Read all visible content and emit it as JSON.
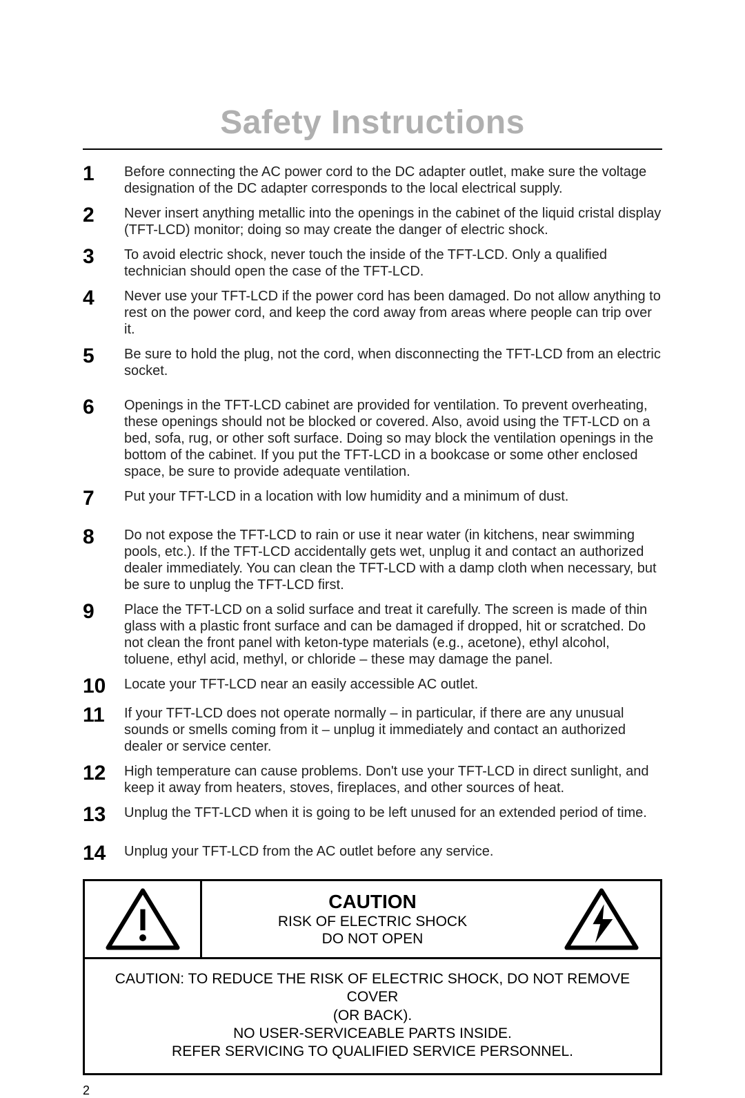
{
  "title": "Safety Instructions",
  "title_color": "#b0b0b0",
  "title_fontsize": 48,
  "rule_color": "#000000",
  "body_fontsize": 20,
  "number_fontsize": 30,
  "items": [
    {
      "n": "1",
      "t": "Before connecting the AC power cord to the DC adapter outlet, make sure the voltage designation of the DC adapter corresponds to the local electrical supply."
    },
    {
      "n": "2",
      "t": "Never insert anything metallic into the openings in the cabinet of the liquid cristal display (TFT-LCD) monitor; doing so may create the danger of electric shock."
    },
    {
      "n": "3",
      "t": "To avoid electric shock, never touch the inside of the TFT-LCD. Only a qualified technician should open the case of the TFT-LCD."
    },
    {
      "n": "4",
      "t": "Never use your TFT-LCD if the power cord has been damaged. Do not allow anything to rest on the power cord, and keep the cord away from areas where people can trip over it."
    },
    {
      "n": "5",
      "t": "Be sure to hold the plug, not the cord, when disconnecting the TFT-LCD from an electric socket."
    },
    {
      "n": "6",
      "t": "Openings in the TFT-LCD cabinet are provided for ventilation. To prevent overheating, these openings should not be blocked or covered. Also, avoid using the TFT-LCD on a bed, sofa, rug, or other soft surface. Doing so may block the ventilation openings in the bottom of the cabinet. If you put the TFT-LCD in a bookcase or some other enclosed space, be sure to provide adequate ventilation."
    },
    {
      "n": "7",
      "t": "Put your TFT-LCD in a location with low humidity and a minimum of dust."
    },
    {
      "n": "8",
      "t": "Do not expose the TFT-LCD to rain or use it near water (in kitchens, near swimming pools, etc.). If the TFT-LCD accidentally gets wet, unplug it and contact an authorized dealer immediately. You can clean the TFT-LCD with a damp cloth when necessary, but be sure to unplug the TFT-LCD first."
    },
    {
      "n": "9",
      "t": "Place the TFT-LCD on a solid surface and treat it carefully. The screen is made of thin glass with a plastic front surface and can be damaged if dropped, hit or scratched. Do not clean the front panel with keton-type materials (e.g., acetone), ethyl alcohol, toluene, ethyl acid, methyl, or chloride – these may damage the panel."
    },
    {
      "n": "10",
      "t": "Locate your TFT-LCD near an easily accessible AC outlet."
    },
    {
      "n": "11",
      "t": "If your TFT-LCD does not operate normally – in particular, if there are any unusual sounds or smells coming from it – unplug it immediately and contact an authorized dealer or service center."
    },
    {
      "n": "12",
      "t": "High temperature can cause problems. Don't use your TFT-LCD in direct sunlight, and keep it away from heaters, stoves, fireplaces, and other sources of heat."
    },
    {
      "n": "13",
      "t": "Unplug the TFT-LCD when it is going to be left unused for an extended period of time."
    },
    {
      "n": "14",
      "t": "Unplug your TFT-LCD from the AC outlet before any service."
    }
  ],
  "gap_after": [
    5,
    7,
    13
  ],
  "caution": {
    "word": "CAUTION",
    "sub1": "RISK OF ELECTRIC SHOCK",
    "sub2": "DO NOT OPEN",
    "bottom": "CAUTION: TO REDUCE THE RISK OF ELECTRIC SHOCK, DO NOT REMOVE COVER\n(OR BACK).\nNO USER-SERVICEABLE PARTS INSIDE.\nREFER SERVICING TO QUALIFIED SERVICE PERSONNEL.",
    "border_color": "#000000",
    "icon_left": "exclamation-triangle",
    "icon_right": "lightning-triangle"
  },
  "page_number": "2"
}
